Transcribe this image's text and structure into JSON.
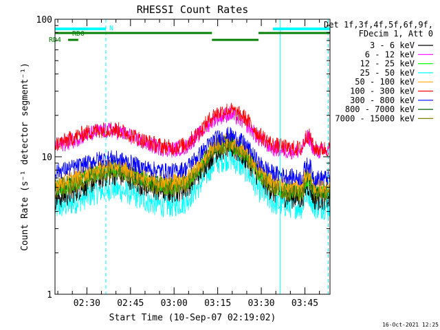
{
  "chart_data": {
    "type": "line",
    "title": "RHESSI Count Rates",
    "xlabel": "Start Time (10-Sep-07 02:19:02)",
    "ylabel": "Count Rate (s⁻¹ detector segment⁻¹)",
    "x_range": [
      "02:19:02",
      "03:53:40"
    ],
    "ylim": [
      1,
      100
    ],
    "yscale": "log",
    "grid": false,
    "x_ticks": [
      "02:30",
      "02:45",
      "03:00",
      "03:15",
      "03:30",
      "03:45"
    ],
    "y_ticks": [
      "1",
      "10",
      "100"
    ],
    "legend_header": [
      "Det 1f,3f,4f,5f,6f,9f,",
      "FDecim 1, Att 0"
    ],
    "legend_position": "right",
    "timestamp": "16-Oct-2021 12:25",
    "x_minutes": [
      0,
      5,
      10,
      15,
      20,
      25,
      30,
      35,
      40,
      45,
      50,
      55,
      60,
      65,
      70,
      75,
      80,
      85,
      90,
      94
    ],
    "series": [
      {
        "name": "3 - 6 keV",
        "color": "#000000",
        "values": [
          5.0,
          5.4,
          6.2,
          7.0,
          7.6,
          7.2,
          6.3,
          5.8,
          5.6,
          6.0,
          7.8,
          11.0,
          12.0,
          10.2,
          7.2,
          5.6,
          5.2,
          5.0,
          5.0,
          5.0
        ]
      },
      {
        "name": "6 - 12 keV",
        "color": "#ff00ff",
        "values": [
          12.0,
          12.8,
          14.2,
          15.2,
          15.6,
          14.4,
          12.8,
          11.8,
          11.2,
          11.8,
          14.8,
          19.0,
          20.5,
          18.0,
          13.5,
          11.5,
          11.0,
          11.0,
          11.0,
          11.0
        ]
      },
      {
        "name": "12 - 25 keV",
        "color": "#00ff00",
        "values": [
          5.8,
          6.2,
          7.0,
          7.8,
          8.2,
          7.6,
          6.8,
          6.2,
          6.0,
          6.4,
          8.4,
          11.8,
          12.5,
          10.8,
          7.6,
          6.0,
          5.6,
          5.5,
          5.5,
          5.5
        ]
      },
      {
        "name": "25 - 50 keV",
        "color": "#00ffff",
        "values": [
          4.2,
          4.5,
          5.0,
          5.6,
          5.9,
          5.5,
          4.9,
          4.5,
          4.4,
          4.7,
          6.3,
          9.0,
          9.8,
          8.2,
          5.8,
          4.6,
          4.4,
          4.3,
          4.3,
          4.3
        ]
      },
      {
        "name": "50 - 100 keV",
        "color": "#ffa500",
        "values": [
          6.4,
          6.8,
          7.5,
          8.3,
          8.8,
          8.2,
          7.3,
          6.8,
          6.6,
          7.0,
          9.0,
          12.5,
          13.2,
          11.4,
          8.2,
          6.6,
          6.2,
          6.1,
          6.1,
          6.1
        ]
      },
      {
        "name": "100 - 300 keV",
        "color": "#ff0000",
        "values": [
          12.2,
          13.4,
          14.8,
          15.6,
          16.0,
          14.8,
          13.2,
          12.2,
          11.6,
          12.2,
          15.4,
          20.5,
          22.0,
          19.5,
          14.5,
          12.2,
          11.6,
          11.4,
          11.4,
          11.4
        ]
      },
      {
        "name": "300 - 800 keV",
        "color": "#0000ff",
        "values": [
          7.8,
          8.2,
          8.8,
          9.6,
          9.8,
          9.2,
          8.4,
          8.0,
          7.8,
          8.2,
          10.5,
          13.5,
          14.5,
          12.6,
          9.0,
          7.6,
          7.2,
          7.0,
          7.0,
          7.0
        ]
      },
      {
        "name": "800 - 7000 keV",
        "color": "#006400",
        "values": [
          6.0,
          6.4,
          7.2,
          8.0,
          8.4,
          7.8,
          7.0,
          6.4,
          6.2,
          6.6,
          8.6,
          12.0,
          12.8,
          11.0,
          7.8,
          6.2,
          5.8,
          5.7,
          5.7,
          5.7
        ]
      },
      {
        "name": "7000 - 15000 keV",
        "color": "#808000",
        "values": [
          5.5,
          5.9,
          6.6,
          7.4,
          7.8,
          7.3,
          6.5,
          6.0,
          5.8,
          6.2,
          8.0,
          11.3,
          12.2,
          10.4,
          7.4,
          5.9,
          5.5,
          5.4,
          5.4,
          5.4
        ]
      }
    ],
    "flag_bars": [
      {
        "label": "N",
        "color": "#00ffff",
        "level": 0,
        "segments": [
          [
            0,
            17.5
          ],
          [
            75,
            94.6
          ]
        ]
      },
      {
        "label": "RD0",
        "color": "#008000",
        "level": 1,
        "segments": [
          [
            0,
            54
          ],
          [
            70,
            94.6
          ]
        ]
      },
      {
        "label": "",
        "color": "#008000",
        "level": 2,
        "segments": [
          [
            54,
            70
          ]
        ]
      },
      {
        "label": "RD4",
        "color": "#008000",
        "level": 3,
        "segments": [
          [
            4.5,
            8
          ]
        ]
      }
    ],
    "markers": [
      {
        "x": 17.5,
        "style": "dashed",
        "color": "#00ffff"
      },
      {
        "x": 77.5,
        "style": "solid",
        "color": "#00ffff"
      },
      {
        "x": 94,
        "style": "dashed",
        "color": "#00ffff"
      }
    ]
  }
}
